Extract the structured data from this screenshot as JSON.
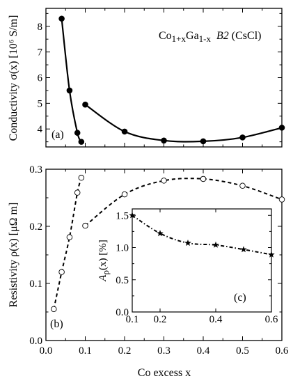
{
  "chart_data": [
    {
      "id": "a",
      "type": "line",
      "panel_label": "(a)",
      "annotation": {
        "formula_base1": "Co",
        "formula_sub1": "1+x",
        "formula_base2": "Ga",
        "formula_sub2": "1-x",
        "phase": "B2",
        "structure": "(CsCl)"
      },
      "ylabel": "Conductivity  σ(x) [10⁶ S/m]",
      "xlim": [
        0,
        0.6
      ],
      "ylim": [
        3.3,
        8.7
      ],
      "yticks": [
        4,
        5,
        6,
        7,
        8
      ],
      "ytick_labels": [
        "4",
        "5",
        "6",
        "7",
        "8"
      ],
      "marker": "filled-circle",
      "line_style": "solid",
      "series": [
        {
          "x": [
            0.04,
            0.06,
            0.08,
            0.09
          ],
          "y": [
            8.3,
            5.5,
            3.85,
            3.5
          ]
        },
        {
          "x": [
            0.1,
            0.2,
            0.3,
            0.4,
            0.5,
            0.6
          ],
          "y": [
            4.95,
            3.9,
            3.55,
            3.52,
            3.67,
            4.05
          ]
        }
      ]
    },
    {
      "id": "b",
      "type": "line",
      "panel_label": "(b)",
      "ylabel": "Resistivity  ρ(x) [μΩ m]",
      "xlabel": "Co excess  x",
      "xlim": [
        0,
        0.6
      ],
      "ylim": [
        0,
        0.3
      ],
      "xticks": [
        0,
        0.1,
        0.2,
        0.3,
        0.4,
        0.5,
        0.6
      ],
      "xtick_labels": [
        "0.0",
        "0.1",
        "0.2",
        "0.3",
        "0.4",
        "0.5",
        "0.6"
      ],
      "yticks": [
        0,
        0.1,
        0.2,
        0.3
      ],
      "ytick_labels": [
        "0.0",
        "0.1",
        "0.2",
        "0.3"
      ],
      "marker": "open-circle",
      "line_style": "dashed",
      "series": [
        {
          "x": [
            0.02,
            0.04,
            0.06,
            0.08,
            0.09
          ],
          "y": [
            0.055,
            0.12,
            0.181,
            0.259,
            0.285
          ]
        },
        {
          "x": [
            0.1,
            0.2,
            0.3,
            0.4,
            0.5,
            0.6
          ],
          "y": [
            0.201,
            0.256,
            0.28,
            0.283,
            0.271,
            0.247
          ]
        }
      ]
    },
    {
      "id": "c",
      "type": "line",
      "panel_label": "(c)",
      "ylabel_base": "A",
      "ylabel_sub": "ρ",
      "ylabel_rest": "(x) [%]",
      "xlim": [
        0.1,
        0.6
      ],
      "ylim": [
        0,
        1.6
      ],
      "xticks": [
        0.1,
        0.2,
        0.4,
        0.6
      ],
      "xtick_labels": [
        "0.1",
        "0.2",
        "0.4",
        "0.6"
      ],
      "yticks": [
        0,
        0.5,
        1.0,
        1.5
      ],
      "ytick_labels": [
        "0.0",
        "0.5",
        "1.0",
        "1.5"
      ],
      "marker": "star",
      "line_style": "dash-dot",
      "series": [
        {
          "x": [
            0.1,
            0.2,
            0.3,
            0.4,
            0.5,
            0.6
          ],
          "y": [
            1.5,
            1.22,
            1.07,
            1.04,
            0.97,
            0.89
          ]
        }
      ]
    }
  ]
}
